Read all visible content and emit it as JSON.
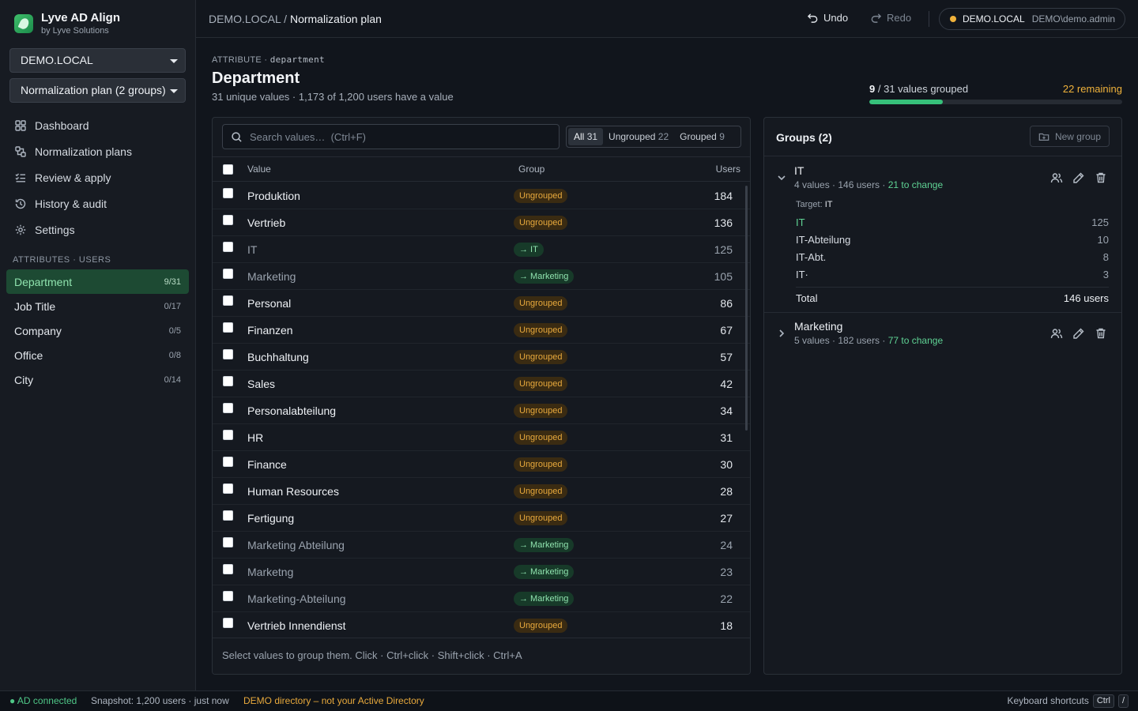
{
  "app": {
    "title": "Lyve AD Align",
    "subtitle": "by Lyve Solutions",
    "domain_select": "DEMO.LOCAL",
    "plan_select": "Normalization plan (2 groups)"
  },
  "nav": [
    {
      "label": "Dashboard",
      "icon": "dashboard-icon"
    },
    {
      "label": "Normalization plans",
      "icon": "plans-icon"
    },
    {
      "label": "Review & apply",
      "icon": "review-icon"
    },
    {
      "label": "History & audit",
      "icon": "history-icon"
    },
    {
      "label": "Settings",
      "icon": "gear-icon"
    }
  ],
  "attributes_label": "ATTRIBUTES · USERS",
  "attributes": [
    {
      "label": "Department",
      "count": "9/31",
      "active": true
    },
    {
      "label": "Job Title",
      "count": "0/17"
    },
    {
      "label": "Company",
      "count": "0/5"
    },
    {
      "label": "Office",
      "count": "0/8"
    },
    {
      "label": "City",
      "count": "0/14"
    }
  ],
  "topbar": {
    "crumb_root": "DEMO.LOCAL",
    "crumb_sep": "/",
    "crumb_current": "Normalization plan",
    "undo": "Undo",
    "redo": "Redo",
    "domain": "DEMO.LOCAL",
    "user": "DEMO\\demo.admin"
  },
  "attribute": {
    "kicker": "ATTRIBUTE ·",
    "key": "department",
    "title": "Department",
    "summary": "31 unique values · 1,173 of 1,200 users have a value"
  },
  "progress": {
    "grouped": "9",
    "total_text": "/ 31 values grouped",
    "remaining": "22 remaining",
    "fraction": 0.29
  },
  "values_panel": {
    "search_placeholder": "Search values…  (Ctrl+F)",
    "filters": [
      {
        "label": "All",
        "count": "31",
        "active": true
      },
      {
        "label": "Ungrouped",
        "count": "22"
      },
      {
        "label": "Grouped",
        "count": "9"
      }
    ],
    "columns": {
      "value": "Value",
      "group": "Group",
      "users": "Users"
    },
    "rows": [
      {
        "value": "Produktion",
        "group": "Ungrouped",
        "users": "184"
      },
      {
        "value": "Vertrieb",
        "group": "Ungrouped",
        "users": "136"
      },
      {
        "value": "IT",
        "group": "→ IT",
        "users": "125",
        "grouped": true
      },
      {
        "value": "Marketing",
        "group": "→ Marketing",
        "users": "105",
        "grouped": true
      },
      {
        "value": "Personal",
        "group": "Ungrouped",
        "users": "86"
      },
      {
        "value": "Finanzen",
        "group": "Ungrouped",
        "users": "67"
      },
      {
        "value": "Buchhaltung",
        "group": "Ungrouped",
        "users": "57"
      },
      {
        "value": "Sales",
        "group": "Ungrouped",
        "users": "42"
      },
      {
        "value": "Personalabteilung",
        "group": "Ungrouped",
        "users": "34"
      },
      {
        "value": "HR",
        "group": "Ungrouped",
        "users": "31"
      },
      {
        "value": "Finance",
        "group": "Ungrouped",
        "users": "30"
      },
      {
        "value": "Human Resources",
        "group": "Ungrouped",
        "users": "28"
      },
      {
        "value": "Fertigung",
        "group": "Ungrouped",
        "users": "27"
      },
      {
        "value": "Marketing Abteilung",
        "group": "→ Marketing",
        "users": "24",
        "grouped": true
      },
      {
        "value": "Marketng",
        "group": "→ Marketing",
        "users": "23",
        "grouped": true
      },
      {
        "value": "Marketing-Abteilung",
        "group": "→ Marketing",
        "users": "22",
        "grouped": true
      },
      {
        "value": "Vertrieb Innendienst",
        "group": "Ungrouped",
        "users": "18"
      }
    ],
    "footer_hint": "Select values to group them. Click · Ctrl+click · Shift+click · Ctrl+A"
  },
  "groups_panel": {
    "title": "Groups (2)",
    "new_group": "New group",
    "groups": [
      {
        "name": "IT",
        "meta": "4 values · 146 users ·",
        "change": "21 to change",
        "expanded": true,
        "target_label": "Target:",
        "target": "IT",
        "values": [
          {
            "value": "IT",
            "users": "125",
            "target": true
          },
          {
            "value": "IT-Abteilung",
            "users": "10"
          },
          {
            "value": "IT-Abt.",
            "users": "8"
          },
          {
            "value": "IT·",
            "users": "3"
          }
        ],
        "total_label": "Total",
        "total": "146 users"
      },
      {
        "name": "Marketing",
        "meta": "5 values · 182 users ·",
        "change": "77 to change",
        "expanded": false
      }
    ]
  },
  "status": {
    "connection": "● AD connected",
    "snapshot": "Snapshot: 1,200 users · just now",
    "demo_warning": "DEMO directory – not your Active Directory",
    "shortcuts": "Keyboard shortcuts",
    "key1": "Ctrl",
    "key2": "/"
  }
}
